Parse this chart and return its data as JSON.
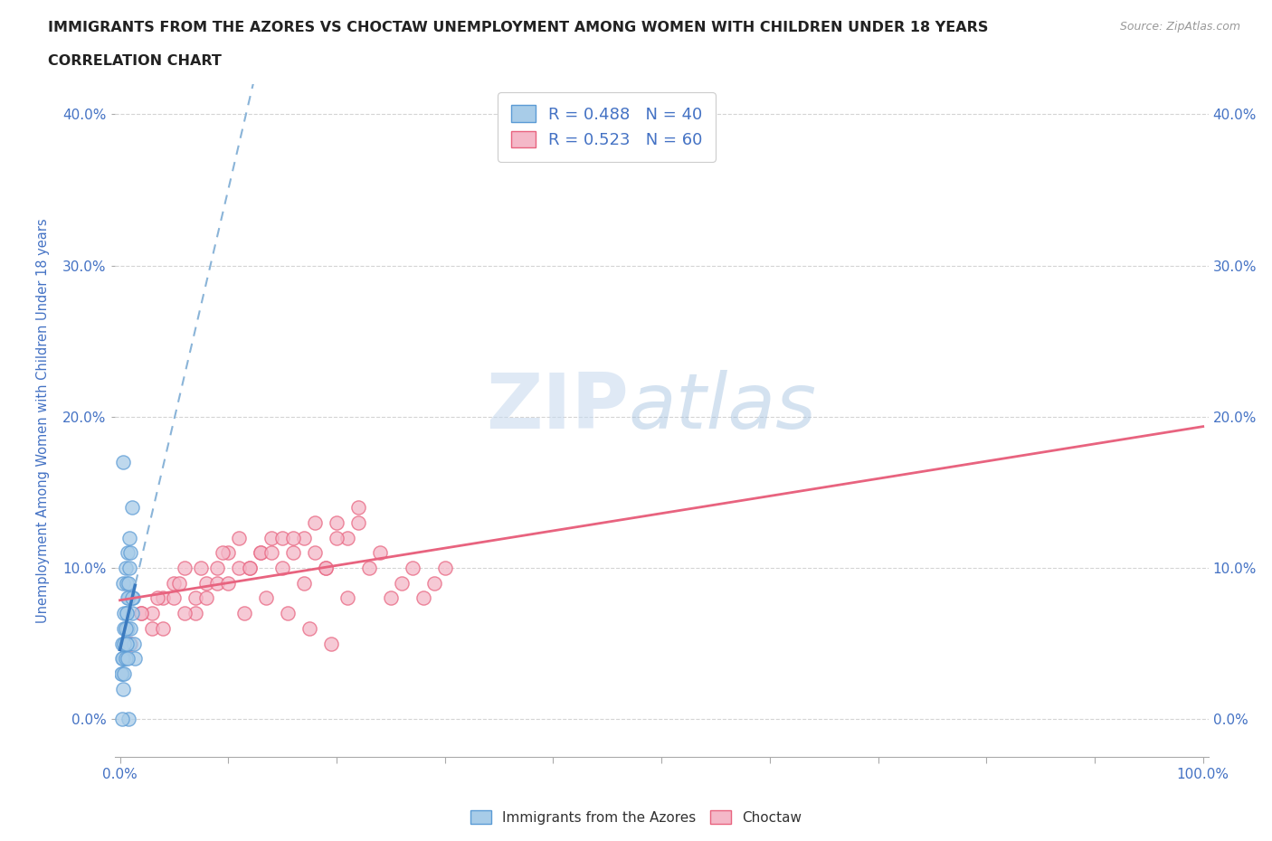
{
  "title_line1": "IMMIGRANTS FROM THE AZORES VS CHOCTAW UNEMPLOYMENT AMONG WOMEN WITH CHILDREN UNDER 18 YEARS",
  "title_line2": "CORRELATION CHART",
  "source_text": "Source: ZipAtlas.com",
  "ylabel": "Unemployment Among Women with Children Under 18 years",
  "watermark_zip": "ZIP",
  "watermark_atlas": "atlas",
  "xlim": [
    -0.005,
    1.005
  ],
  "ylim": [
    -0.025,
    0.42
  ],
  "xticks": [
    0.0,
    0.1,
    0.2,
    0.3,
    0.4,
    0.5,
    0.6,
    0.7,
    0.8,
    0.9,
    1.0
  ],
  "yticks": [
    0.0,
    0.1,
    0.2,
    0.3,
    0.4
  ],
  "blue_color": "#a8cce8",
  "blue_edge": "#5b9bd5",
  "pink_color": "#f4b8c8",
  "pink_edge": "#e8637f",
  "reg_blue_solid": "#3a7abf",
  "reg_blue_dash": "#8ab4d8",
  "reg_pink": "#e8637f",
  "legend_label_blue": "Immigrants from the Azores",
  "legend_label_pink": "Choctaw",
  "legend_R_blue": "R = 0.488",
  "legend_N_blue": "N = 40",
  "legend_R_pink": "R = 0.523",
  "legend_N_pink": "N = 60",
  "title_color": "#222222",
  "tick_color": "#4472c4",
  "grid_color": "#d0d0d0",
  "bg_color": "#ffffff",
  "blue_x": [
    0.002,
    0.003,
    0.004,
    0.005,
    0.006,
    0.007,
    0.008,
    0.009,
    0.01,
    0.011,
    0.012,
    0.013,
    0.014,
    0.003,
    0.005,
    0.007,
    0.009,
    0.011,
    0.004,
    0.006,
    0.002,
    0.003,
    0.004,
    0.005,
    0.006,
    0.007,
    0.008,
    0.009,
    0.01,
    0.011,
    0.001,
    0.002,
    0.003,
    0.004,
    0.005,
    0.006,
    0.007,
    0.008,
    0.003,
    0.002
  ],
  "blue_y": [
    0.05,
    0.04,
    0.06,
    0.05,
    0.07,
    0.06,
    0.08,
    0.05,
    0.06,
    0.07,
    0.08,
    0.05,
    0.04,
    0.09,
    0.1,
    0.11,
    0.12,
    0.14,
    0.07,
    0.09,
    0.03,
    0.04,
    0.05,
    0.06,
    0.07,
    0.08,
    0.09,
    0.1,
    0.11,
    0.08,
    0.03,
    0.04,
    0.02,
    0.03,
    0.04,
    0.05,
    0.04,
    0.0,
    0.17,
    0.0
  ],
  "pink_x": [
    0.01,
    0.02,
    0.03,
    0.04,
    0.05,
    0.06,
    0.07,
    0.08,
    0.09,
    0.1,
    0.11,
    0.12,
    0.13,
    0.14,
    0.15,
    0.16,
    0.17,
    0.18,
    0.19,
    0.2,
    0.21,
    0.22,
    0.23,
    0.24,
    0.25,
    0.26,
    0.27,
    0.28,
    0.29,
    0.3,
    0.03,
    0.05,
    0.07,
    0.09,
    0.11,
    0.13,
    0.15,
    0.17,
    0.19,
    0.21,
    0.04,
    0.06,
    0.08,
    0.1,
    0.12,
    0.14,
    0.16,
    0.18,
    0.2,
    0.22,
    0.02,
    0.035,
    0.055,
    0.075,
    0.095,
    0.115,
    0.135,
    0.155,
    0.175,
    0.195
  ],
  "pink_y": [
    0.05,
    0.07,
    0.06,
    0.08,
    0.09,
    0.1,
    0.08,
    0.09,
    0.1,
    0.11,
    0.12,
    0.1,
    0.11,
    0.12,
    0.1,
    0.11,
    0.12,
    0.13,
    0.1,
    0.13,
    0.12,
    0.14,
    0.1,
    0.11,
    0.08,
    0.09,
    0.1,
    0.08,
    0.09,
    0.1,
    0.07,
    0.08,
    0.07,
    0.09,
    0.1,
    0.11,
    0.12,
    0.09,
    0.1,
    0.08,
    0.06,
    0.07,
    0.08,
    0.09,
    0.1,
    0.11,
    0.12,
    0.11,
    0.12,
    0.13,
    0.07,
    0.08,
    0.09,
    0.1,
    0.11,
    0.07,
    0.08,
    0.07,
    0.06,
    0.05
  ]
}
